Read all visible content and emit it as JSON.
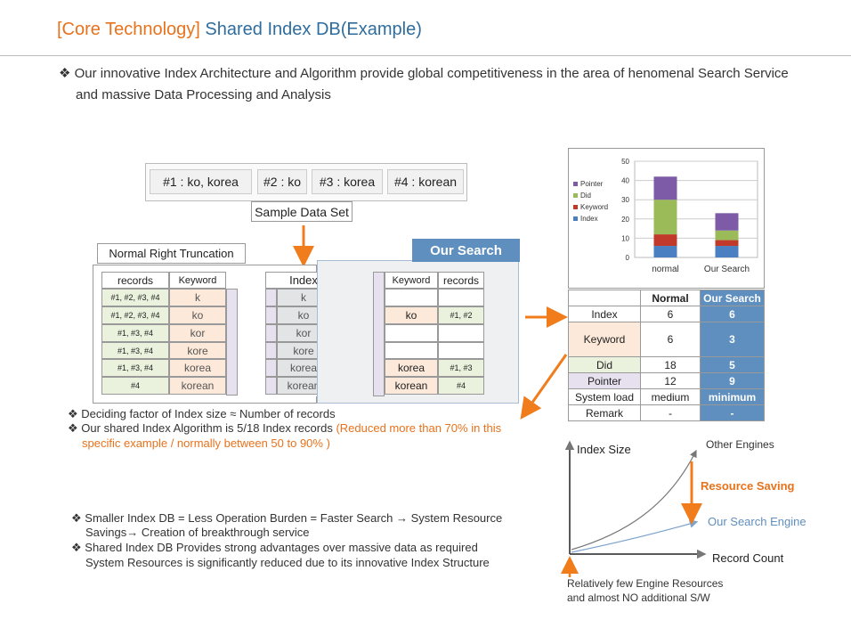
{
  "header": {
    "title_bracket": "[Core Technology]",
    "title_main": "Shared Index DB(Example)"
  },
  "intro": {
    "bullet": "❖",
    "line1": "Our innovative Index Architecture and Algorithm provide global competitiveness in the area of henomenal Search Service",
    "line2": "and massive Data Processing and Analysis"
  },
  "sample": {
    "items": [
      "#1 : ko, korea",
      "#2 : ko",
      "#3 : korea",
      "#4 : korean"
    ],
    "label": "Sample Data Set"
  },
  "normal": {
    "label": "Normal Right Truncation",
    "col_records": "records",
    "col_keyword": "Keyword",
    "rows": [
      {
        "records": "#1, #2, #3, #4",
        "keyword": "k"
      },
      {
        "records": "#1, #2, #3, #4",
        "keyword": "ko"
      },
      {
        "records": "#1, #3, #4",
        "keyword": "kor"
      },
      {
        "records": "#1, #3, #4",
        "keyword": "kore"
      },
      {
        "records": "#1, #3, #4",
        "keyword": "korea"
      },
      {
        "records": "#4",
        "keyword": "korean"
      }
    ]
  },
  "index": {
    "header": "Index",
    "rows": [
      "k",
      "ko",
      "kor",
      "kore",
      "korea",
      "korean"
    ]
  },
  "our": {
    "label": "Our Search",
    "col_keyword": "Keyword",
    "col_records": "records",
    "rows": [
      {
        "keyword": "",
        "records": ""
      },
      {
        "keyword": "ko",
        "records": "#1, #2"
      },
      {
        "keyword": "",
        "records": ""
      },
      {
        "keyword": "",
        "records": ""
      },
      {
        "keyword": "korea",
        "records": "#1, #3"
      },
      {
        "keyword": "korean",
        "records": "#4"
      }
    ]
  },
  "notes1": {
    "bullet": "❖",
    "line1": "Deciding factor of Index size ≈ Number of records",
    "line2a": "Our shared Index Algorithm is 5/18 Index  records ",
    "line2b": "(Reduced more than 70% in this",
    "line3": "specific example  / normally between 50 to 90% )"
  },
  "notes2": {
    "bullet": "❖",
    "l1": "Smaller Index DB = Less Operation Burden = Faster Search → System Resource",
    "l2": "Savings→ Creation of breakthrough service",
    "l3": "Shared Index DB Provides strong advantages over massive data as required",
    "l4": "System Resources is significantly reduced due to its innovative Index Structure"
  },
  "chart_data": {
    "type": "bar",
    "stacked": true,
    "categories": [
      "normal",
      "Our Search"
    ],
    "series": [
      {
        "name": "Index",
        "color": "#4a7fc1",
        "values": [
          6,
          6
        ]
      },
      {
        "name": "Keyword",
        "color": "#c0392b",
        "values": [
          6,
          3
        ]
      },
      {
        "name": "Did",
        "color": "#9bbb59",
        "values": [
          18,
          5
        ]
      },
      {
        "name": "Pointer",
        "color": "#7d5ba6",
        "values": [
          12,
          9
        ]
      }
    ],
    "yticks": [
      "0",
      "10",
      "20",
      "30",
      "40",
      "50"
    ],
    "ylim": [
      0,
      50
    ],
    "legend": "left",
    "grid": true
  },
  "compare": {
    "col_normal": "Normal",
    "col_ours": "Our Search",
    "rows": [
      {
        "label": "Index",
        "normal": "6",
        "ours": "6"
      },
      {
        "label": "Keyword",
        "normal": "6",
        "ours": "3"
      },
      {
        "label": "Did",
        "normal": "18",
        "ours": "5"
      },
      {
        "label": "Pointer",
        "normal": "12",
        "ours": "9"
      },
      {
        "label": "System load",
        "normal": "medium",
        "ours": "minimum"
      },
      {
        "label": "Remark",
        "normal": "-",
        "ours": "-"
      }
    ]
  },
  "growth": {
    "y_label": "Index Size",
    "x_label": "Record Count",
    "other": "Other Engines",
    "ours": "Our Search Engine",
    "saving": "Resource  Saving",
    "foot1": "Relatively  few  Engine Resources",
    "foot2": "and almost NO additional S/W"
  }
}
